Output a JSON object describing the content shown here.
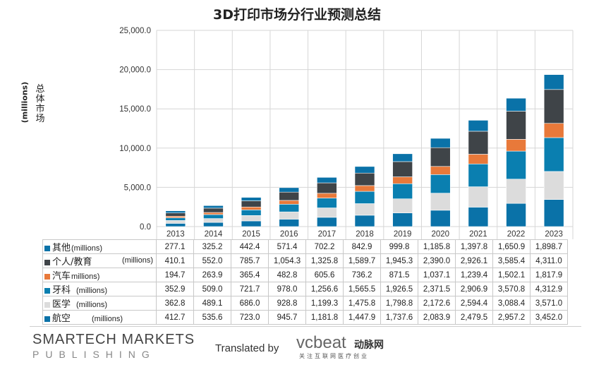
{
  "chart_data": {
    "type": "bar",
    "stacked": true,
    "title": "3D打印市场分行业预测总结",
    "ylabel": "总体市场",
    "ylabel_unit": "(millions)",
    "ylim": [
      0,
      25000
    ],
    "yticks": [
      "0.0",
      "5,000.0",
      "10,000.0",
      "15,000.0",
      "20,000.0",
      "25,000.0"
    ],
    "ytick_values": [
      0,
      5000,
      10000,
      15000,
      20000,
      25000
    ],
    "categories": [
      "2013",
      "2014",
      "2015",
      "2016",
      "2017",
      "2018",
      "2019",
      "2020",
      "2021",
      "2022",
      "2023"
    ],
    "series": [
      {
        "name": "航空",
        "unit": "(millions)",
        "color": "#0a72a8",
        "values": [
          412.7,
          535.6,
          723.0,
          945.7,
          1181.8,
          1447.9,
          1737.6,
          2083.9,
          2479.5,
          2957.2,
          3452.0
        ],
        "labels": [
          "412.7",
          "535.6",
          "723.0",
          "945.7",
          "1,181.8",
          "1,447.9",
          "1,737.6",
          "2,083.9",
          "2,479.5",
          "2,957.2",
          "3,452.0"
        ]
      },
      {
        "name": "医学",
        "unit": "(millions)",
        "color": "#dcdcdc",
        "values": [
          362.8,
          489.1,
          686.0,
          928.8,
          1199.3,
          1475.8,
          1798.8,
          2172.6,
          2594.4,
          3088.4,
          3571.0
        ],
        "labels": [
          "362.8",
          "489.1",
          "686.0",
          "928.8",
          "1,199.3",
          "1,475.8",
          "1,798.8",
          "2,172.6",
          "2,594.4",
          "3,088.4",
          "3,571.0"
        ]
      },
      {
        "name": "牙科",
        "unit": "(millions)",
        "color": "#0a7fb0",
        "values": [
          352.9,
          509.0,
          721.7,
          978.0,
          1256.6,
          1565.5,
          1926.5,
          2371.5,
          2906.9,
          3570.8,
          4312.9
        ],
        "labels": [
          "352.9",
          "509.0",
          "721.7",
          "978.0",
          "1,256.6",
          "1,565.5",
          "1,926.5",
          "2,371.5",
          "2,906.9",
          "3,570.8",
          "4,312.9"
        ]
      },
      {
        "name": "汽车",
        "unit": "millions)",
        "color": "#e8793a",
        "values": [
          194.7,
          263.9,
          365.4,
          482.8,
          605.6,
          736.2,
          871.5,
          1037.1,
          1239.4,
          1502.1,
          1817.9
        ],
        "labels": [
          "194.7",
          "263.9",
          "365.4",
          "482.8",
          "605.6",
          "736.2",
          "871.5",
          "1,037.1",
          "1,239.4",
          "1,502.1",
          "1,817.9"
        ]
      },
      {
        "name": "个人/教育",
        "unit": "(millions)",
        "color": "#3f4448",
        "values": [
          410.1,
          552.0,
          785.7,
          1054.3,
          1325.8,
          1589.7,
          1945.3,
          2390.0,
          2926.1,
          3585.4,
          4311.0
        ],
        "labels": [
          "410.1",
          "552.0",
          "785.7",
          "1,054.3",
          "1,325.8",
          "1,589.7",
          "1,945.3",
          "2,390.0",
          "2,926.1",
          "3,585.4",
          "4,311.0"
        ]
      },
      {
        "name": "其他",
        "unit": "(millions)",
        "color": "#0a72a8",
        "values": [
          277.1,
          325.2,
          442.4,
          571.4,
          702.2,
          842.9,
          999.8,
          1185.8,
          1397.8,
          1650.9,
          1898.7
        ],
        "labels": [
          "277.1",
          "325.2",
          "442.4",
          "571.4",
          "702.2",
          "842.9",
          "999.8",
          "1,185.8",
          "1,397.8",
          "1,650.9",
          "1,898.7"
        ]
      }
    ]
  },
  "footer": {
    "brand_line1": "SMARTECH MARKETS",
    "brand_line2": "PUBLISHING",
    "translated_by": "Translated by",
    "vcbeat": "vcbeat",
    "vcbeat_cn": "动脉网",
    "vcbeat_sub": "关注互联网医疗创业"
  }
}
